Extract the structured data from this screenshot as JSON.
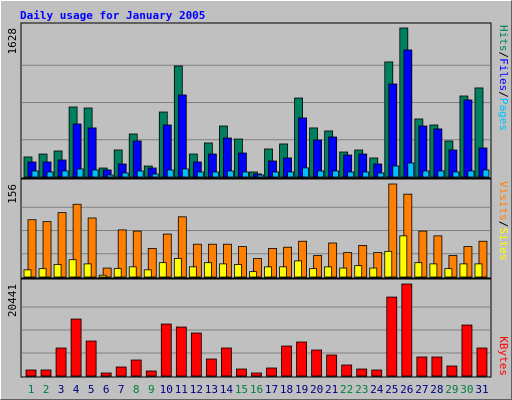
{
  "title": "Daily usage for January 2005",
  "chart_data": [
    {
      "type": "bar",
      "ylim": [
        0,
        1628
      ],
      "yticks": [
        1628
      ],
      "legend_separator": "/",
      "series": [
        {
          "name": "Hits",
          "color": "#008060",
          "values": [
            219,
            251,
            284,
            765,
            754,
            98,
            295,
            470,
            120,
            710,
            1213,
            251,
            372,
            557,
            415,
            55,
            306,
            361,
            863,
            536,
            503,
            273,
            295,
            208,
            1257,
            1628,
            634,
            568,
            393,
            885,
            973
          ]
        },
        {
          "name": "Files",
          "color": "#0000ff",
          "values": [
            164,
            164,
            186,
            579,
            536,
            77,
            142,
            393,
            98,
            568,
            896,
            164,
            251,
            426,
            262,
            33,
            175,
            208,
            645,
            404,
            437,
            240,
            251,
            142,
            1016,
            1388,
            557,
            525,
            295,
            842,
            317
          ]
        },
        {
          "name": "Pages",
          "color": "#00c0ff",
          "values": [
            66,
            55,
            66,
            88,
            77,
            22,
            44,
            66,
            33,
            77,
            88,
            55,
            55,
            66,
            55,
            22,
            55,
            55,
            99,
            66,
            66,
            55,
            55,
            44,
            120,
            153,
            66,
            66,
            55,
            66,
            77
          ]
        }
      ]
    },
    {
      "type": "bar",
      "ylim": [
        0,
        156
      ],
      "yticks": [
        156
      ],
      "legend_separator": "/",
      "series": [
        {
          "name": "Visits",
          "color": "#ff8000",
          "values": [
            96,
            93,
            108,
            122,
            99,
            15,
            79,
            77,
            48,
            72,
            101,
            55,
            55,
            55,
            51,
            31,
            48,
            50,
            60,
            36,
            57,
            41,
            53,
            41,
            156,
            139,
            77,
            69,
            36,
            51,
            60
          ]
        },
        {
          "name": "Sites",
          "color": "#ffff00",
          "values": [
            12,
            14,
            21,
            29,
            22,
            3,
            14,
            17,
            12,
            24,
            31,
            17,
            24,
            22,
            21,
            9,
            17,
            17,
            27,
            14,
            17,
            15,
            19,
            15,
            43,
            69,
            24,
            22,
            14,
            22,
            22
          ]
        }
      ]
    },
    {
      "type": "bar",
      "ylim": [
        0,
        20441
      ],
      "yticks": [
        20441
      ],
      "series": [
        {
          "name": "KBytes",
          "color": "#ff0000",
          "values": [
            1332,
            1332,
            6216,
            12654,
            7770,
            666,
            1998,
            3552,
            1110,
            11544,
            10878,
            9546,
            3774,
            6216,
            1554,
            666,
            1776,
            6660,
            7548,
            5772,
            4662,
            2442,
            1554,
            1332,
            17538,
            20441,
            4218,
            4218,
            2220,
            11322,
            6216
          ]
        }
      ],
      "categories": [
        "1",
        "2",
        "3",
        "4",
        "5",
        "6",
        "7",
        "8",
        "9",
        "10",
        "11",
        "12",
        "13",
        "14",
        "15",
        "16",
        "17",
        "18",
        "19",
        "20",
        "21",
        "22",
        "23",
        "24",
        "25",
        "26",
        "27",
        "28",
        "29",
        "30",
        "31"
      ],
      "category_colors": [
        "#008040",
        "#008040",
        "#000080",
        "#000080",
        "#000080",
        "#000080",
        "#000080",
        "#008040",
        "#008040",
        "#000080",
        "#000080",
        "#000080",
        "#000080",
        "#000080",
        "#008040",
        "#008040",
        "#000080",
        "#000080",
        "#000080",
        "#000080",
        "#000080",
        "#008040",
        "#008040",
        "#000080",
        "#000080",
        "#000080",
        "#000080",
        "#000080",
        "#008040",
        "#008040",
        "#000080"
      ]
    }
  ]
}
